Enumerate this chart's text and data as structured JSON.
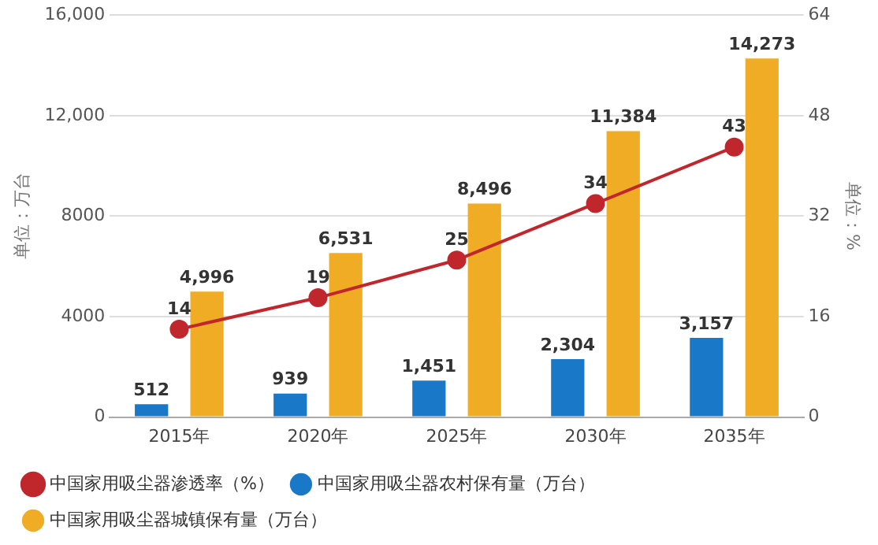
{
  "chart_data": {
    "type": "bar",
    "categories": [
      "2015年",
      "2020年",
      "2025年",
      "2030年",
      "2035年"
    ],
    "series": [
      {
        "name": "中国家用吸尘器农村保有量（万台）",
        "color": "#1a78c8",
        "values": [
          512,
          939,
          1451,
          2304,
          3157
        ],
        "value_labels": [
          "512",
          "939",
          "1,451",
          "2,304",
          "3,157"
        ]
      },
      {
        "name": "中国家用吸尘器城镇保有量（万台）",
        "color": "#f0ac25",
        "values": [
          4996,
          6531,
          8496,
          11384,
          14273
        ],
        "value_labels": [
          "4,996",
          "6,531",
          "8,496",
          "11,384",
          "14,273"
        ]
      },
      {
        "name": "中国家用吸尘器渗透率（%）",
        "type": "line",
        "axis": "y2",
        "color": "#c0272d",
        "values": [
          14,
          19,
          25,
          34,
          43
        ],
        "value_labels": [
          "14",
          "19",
          "25",
          "34",
          "43"
        ]
      }
    ],
    "ylabel": "单位：万台",
    "y2label": "单位：%",
    "ylim": [
      0,
      16000
    ],
    "yticks": [
      0,
      4000,
      8000,
      {
        "value": 12000,
        "label": "12,000"
      },
      {
        "value": 16000,
        "label": "16,000"
      }
    ],
    "y2lim": [
      0,
      64
    ],
    "y2ticks": [
      0,
      16,
      32,
      48,
      64
    ],
    "grid": "y",
    "legend": "bottom",
    "marker": "circle",
    "line_style": "solid"
  }
}
